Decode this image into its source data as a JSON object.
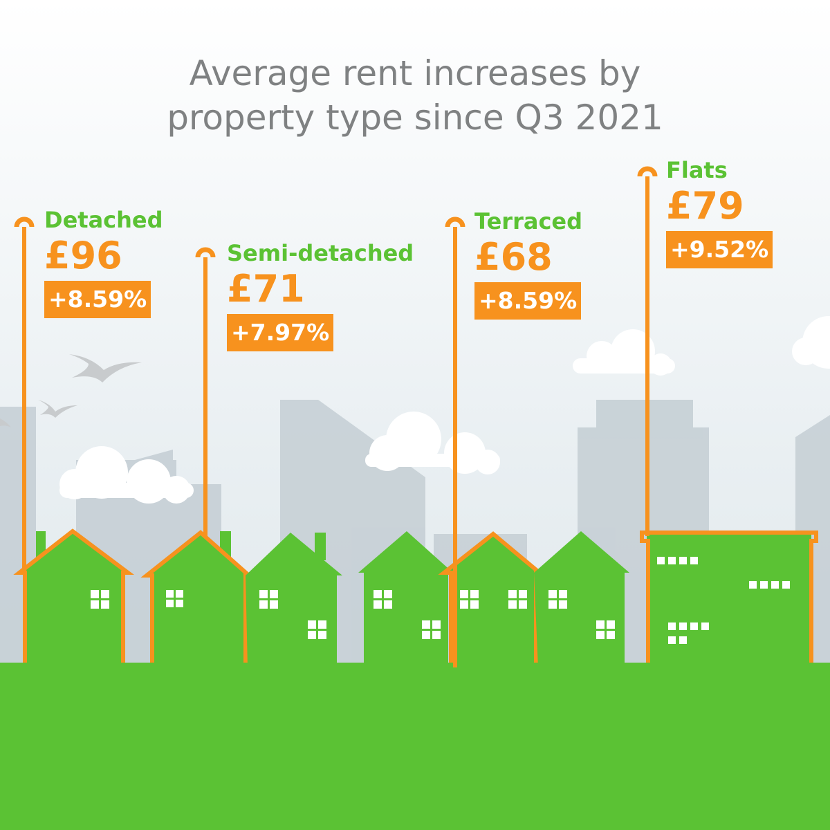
{
  "title_lines": [
    "Average rent increases by",
    "property type since Q3 2021"
  ],
  "property_types": [
    {
      "name": "Detached",
      "amount": "£96",
      "change": "+8.59%"
    },
    {
      "name": "Semi-detached",
      "amount": "£71",
      "change": "+7.97%"
    },
    {
      "name": "Terraced",
      "amount": "£68",
      "change": "+8.59%"
    },
    {
      "name": "Flats",
      "amount": "£79",
      "change": "+9.52%"
    }
  ],
  "colors": {
    "accent": "#f7921e",
    "green": "#5bc234",
    "title": "#7f8182"
  }
}
